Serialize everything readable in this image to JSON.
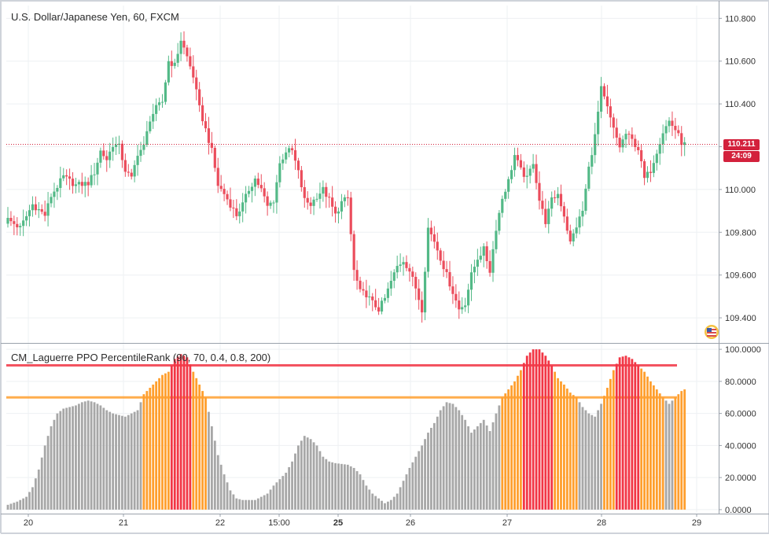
{
  "chart_data": [
    {
      "type": "candlestick",
      "title": "U.S. Dollar/Japanese Yen, 60, FXCM",
      "x_ticks": [
        "20",
        "21",
        "22",
        "15:00",
        "25",
        "26",
        "27",
        "28",
        "29"
      ],
      "y_ticks": [
        "110.800",
        "110.600",
        "110.400",
        "110.200",
        "110.000",
        "109.800",
        "109.600",
        "109.400"
      ],
      "ylim": [
        109.29,
        110.86
      ],
      "last_price": "110.211",
      "countdown": "24:09",
      "colors": {
        "up": "#53b987",
        "down": "#eb4d5c",
        "last_price_line": "#d3213c"
      },
      "grid": true,
      "close_path": [
        [
          0,
          109.86
        ],
        [
          4,
          109.82
        ],
        [
          8,
          109.93
        ],
        [
          12,
          109.88
        ],
        [
          14,
          109.97
        ],
        [
          18,
          110.06
        ],
        [
          22,
          110.02
        ],
        [
          26,
          110.03
        ],
        [
          28,
          110.08
        ],
        [
          30,
          110.18
        ],
        [
          32,
          110.14
        ],
        [
          34,
          110.21
        ],
        [
          36,
          110.2
        ],
        [
          38,
          110.09
        ],
        [
          40,
          110.05
        ],
        [
          42,
          110.17
        ],
        [
          44,
          110.2
        ],
        [
          46,
          110.33
        ],
        [
          48,
          110.38
        ],
        [
          50,
          110.41
        ],
        [
          52,
          110.6
        ],
        [
          54,
          110.58
        ],
        [
          56,
          110.7
        ],
        [
          58,
          110.62
        ],
        [
          60,
          110.53
        ],
        [
          62,
          110.38
        ],
        [
          64,
          110.28
        ],
        [
          66,
          110.18
        ],
        [
          68,
          110.02
        ],
        [
          70,
          109.98
        ],
        [
          72,
          109.93
        ],
        [
          74,
          109.88
        ],
        [
          76,
          109.93
        ],
        [
          78,
          110.0
        ],
        [
          80,
          110.05
        ],
        [
          82,
          110.0
        ],
        [
          84,
          109.92
        ],
        [
          86,
          109.95
        ],
        [
          88,
          110.12
        ],
        [
          90,
          110.18
        ],
        [
          92,
          110.18
        ],
        [
          94,
          110.08
        ],
        [
          96,
          109.95
        ],
        [
          98,
          109.93
        ],
        [
          100,
          109.97
        ],
        [
          102,
          110.0
        ],
        [
          104,
          109.95
        ],
        [
          106,
          109.88
        ],
        [
          108,
          109.94
        ],
        [
          110,
          109.96
        ],
        [
          112,
          109.62
        ],
        [
          114,
          109.52
        ],
        [
          116,
          109.51
        ],
        [
          118,
          109.47
        ],
        [
          120,
          109.44
        ],
        [
          122,
          109.49
        ],
        [
          124,
          109.57
        ],
        [
          126,
          109.64
        ],
        [
          128,
          109.67
        ],
        [
          130,
          109.62
        ],
        [
          132,
          109.54
        ],
        [
          134,
          109.44
        ],
        [
          136,
          109.82
        ],
        [
          138,
          109.76
        ],
        [
          140,
          109.68
        ],
        [
          142,
          109.6
        ],
        [
          144,
          109.52
        ],
        [
          146,
          109.44
        ],
        [
          148,
          109.47
        ],
        [
          150,
          109.6
        ],
        [
          152,
          109.68
        ],
        [
          154,
          109.72
        ],
        [
          156,
          109.62
        ],
        [
          158,
          109.82
        ],
        [
          160,
          109.96
        ],
        [
          162,
          110.04
        ],
        [
          164,
          110.16
        ],
        [
          166,
          110.09
        ],
        [
          168,
          110.05
        ],
        [
          170,
          110.13
        ],
        [
          172,
          109.95
        ],
        [
          174,
          109.85
        ],
        [
          176,
          109.95
        ],
        [
          178,
          109.98
        ],
        [
          180,
          109.88
        ],
        [
          182,
          109.75
        ],
        [
          184,
          109.83
        ],
        [
          186,
          109.9
        ],
        [
          188,
          110.1
        ],
        [
          190,
          110.25
        ],
        [
          192,
          110.47
        ],
        [
          194,
          110.38
        ],
        [
          196,
          110.28
        ],
        [
          198,
          110.2
        ],
        [
          200,
          110.26
        ],
        [
          202,
          110.23
        ],
        [
          204,
          110.19
        ],
        [
          206,
          110.05
        ],
        [
          208,
          110.09
        ],
        [
          210,
          110.18
        ],
        [
          212,
          110.27
        ],
        [
          214,
          110.32
        ],
        [
          216,
          110.28
        ],
        [
          218,
          110.22
        ],
        [
          219,
          110.211
        ]
      ]
    },
    {
      "type": "bar",
      "title": "CM_Laguerre PPO PercentileRank (90, 70, 0.4, 0.8, 200)",
      "y_ticks": [
        "100.0000",
        "80.0000",
        "60.0000",
        "40.0000",
        "20.0000",
        "0.0000"
      ],
      "ylim": [
        -2,
        103
      ],
      "thresholds": [
        {
          "value": 90,
          "color": "#f23645"
        },
        {
          "value": 70,
          "color": "#ff9f2e"
        }
      ],
      "colors": {
        "extreme": "#f23645",
        "warning": "#ff9f2e",
        "normal": "#a7a7a7"
      },
      "value_path": [
        [
          0,
          3
        ],
        [
          3,
          5
        ],
        [
          6,
          8
        ],
        [
          8,
          14
        ],
        [
          10,
          25
        ],
        [
          12,
          40
        ],
        [
          14,
          52
        ],
        [
          16,
          60
        ],
        [
          18,
          63
        ],
        [
          20,
          64
        ],
        [
          22,
          65
        ],
        [
          24,
          67
        ],
        [
          26,
          68
        ],
        [
          28,
          67
        ],
        [
          30,
          65
        ],
        [
          32,
          62
        ],
        [
          34,
          60
        ],
        [
          36,
          59
        ],
        [
          38,
          58
        ],
        [
          40,
          60
        ],
        [
          42,
          62
        ],
        [
          44,
          72
        ],
        [
          46,
          76
        ],
        [
          48,
          80
        ],
        [
          50,
          84
        ],
        [
          52,
          86
        ],
        [
          54,
          94
        ],
        [
          56,
          97
        ],
        [
          58,
          95
        ],
        [
          60,
          86
        ],
        [
          62,
          78
        ],
        [
          64,
          70
        ],
        [
          66,
          52
        ],
        [
          68,
          34
        ],
        [
          70,
          22
        ],
        [
          72,
          12
        ],
        [
          74,
          7
        ],
        [
          76,
          6
        ],
        [
          80,
          6
        ],
        [
          84,
          10
        ],
        [
          86,
          15
        ],
        [
          88,
          19
        ],
        [
          90,
          23
        ],
        [
          92,
          30
        ],
        [
          94,
          40
        ],
        [
          96,
          46
        ],
        [
          98,
          44
        ],
        [
          100,
          40
        ],
        [
          102,
          33
        ],
        [
          104,
          30
        ],
        [
          106,
          29
        ],
        [
          110,
          28
        ],
        [
          112,
          26
        ],
        [
          114,
          22
        ],
        [
          116,
          15
        ],
        [
          118,
          10
        ],
        [
          120,
          7
        ],
        [
          122,
          4
        ],
        [
          124,
          6
        ],
        [
          126,
          10
        ],
        [
          128,
          18
        ],
        [
          130,
          26
        ],
        [
          132,
          33
        ],
        [
          134,
          40
        ],
        [
          136,
          48
        ],
        [
          138,
          54
        ],
        [
          140,
          62
        ],
        [
          142,
          67
        ],
        [
          144,
          66
        ],
        [
          146,
          62
        ],
        [
          148,
          56
        ],
        [
          150,
          48
        ],
        [
          152,
          52
        ],
        [
          154,
          56
        ],
        [
          156,
          49
        ],
        [
          158,
          60
        ],
        [
          160,
          70
        ],
        [
          162,
          75
        ],
        [
          164,
          80
        ],
        [
          166,
          87
        ],
        [
          168,
          96
        ],
        [
          170,
          100
        ],
        [
          172,
          100
        ],
        [
          174,
          96
        ],
        [
          176,
          90
        ],
        [
          178,
          82
        ],
        [
          180,
          78
        ],
        [
          182,
          73
        ],
        [
          184,
          70
        ],
        [
          186,
          64
        ],
        [
          188,
          60
        ],
        [
          190,
          58
        ],
        [
          192,
          66
        ],
        [
          194,
          76
        ],
        [
          196,
          87
        ],
        [
          198,
          95
        ],
        [
          200,
          96
        ],
        [
          202,
          94
        ],
        [
          204,
          90
        ],
        [
          206,
          86
        ],
        [
          208,
          80
        ],
        [
          210,
          75
        ],
        [
          212,
          70
        ],
        [
          214,
          66
        ],
        [
          216,
          70
        ],
        [
          218,
          74
        ],
        [
          219,
          75
        ]
      ]
    }
  ]
}
